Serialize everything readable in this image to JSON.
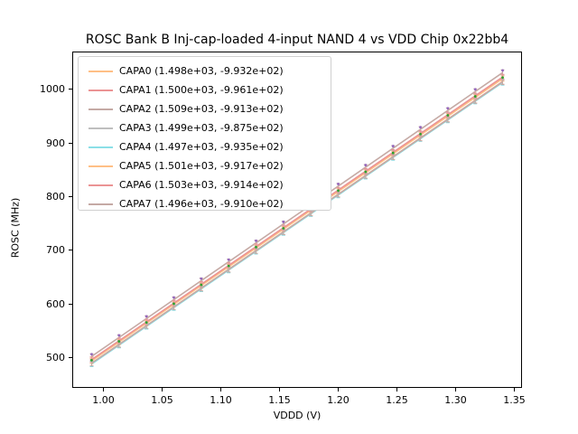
{
  "title": "ROSC Bank B Inj-cap-loaded 4-input NAND 4 vs VDD Chip 0x22bb4",
  "chart_data": {
    "type": "line",
    "title": "ROSC Bank B Inj-cap-loaded 4-input NAND 4 vs VDD Chip 0x22bb4",
    "xlabel": "VDDD (V)",
    "ylabel": "ROSC (MHz)",
    "xlim": [
      0.9735,
      1.3565
    ],
    "ylim": [
      444,
      1070
    ],
    "grid": false,
    "legend_position": "upper left",
    "xticks": {
      "values": [
        1.0,
        1.05,
        1.1,
        1.15,
        1.2,
        1.25,
        1.3,
        1.35
      ],
      "labels": [
        "1.00",
        "1.05",
        "1.10",
        "1.15",
        "1.20",
        "1.25",
        "1.30",
        "1.35"
      ]
    },
    "yticks": {
      "values": [
        500,
        600,
        700,
        800,
        900,
        1000
      ],
      "labels": [
        "500",
        "600",
        "700",
        "800",
        "900",
        "1000"
      ]
    },
    "x_points": [
      0.99,
      1.0133,
      1.0367,
      1.06,
      1.0833,
      1.1067,
      1.13,
      1.1533,
      1.1767,
      1.2,
      1.2233,
      1.2467,
      1.27,
      1.2933,
      1.3167,
      1.34
    ],
    "error_mhz": 5,
    "series": [
      {
        "name": "CAPA0",
        "label": "CAPA0 (1.498e+03, -9.932e+02)",
        "slope": 1498.0,
        "intercept": -993.2,
        "color": "#ffbf86"
      },
      {
        "name": "CAPA1",
        "label": "CAPA1 (1.500e+03, -9.961e+02)",
        "slope": 1500.0,
        "intercept": -996.1,
        "color": "#eb9394"
      },
      {
        "name": "CAPA2",
        "label": "CAPA2 (1.509e+03, -9.913e+02)",
        "slope": 1509.0,
        "intercept": -991.3,
        "color": "#c5aaa5"
      },
      {
        "name": "CAPA3",
        "label": "CAPA3 (1.499e+03, -9.875e+02)",
        "slope": 1499.0,
        "intercept": -987.5,
        "color": "#bfbfbf"
      },
      {
        "name": "CAPA4",
        "label": "CAPA4 (1.497e+03, -9.935e+02)",
        "slope": 1497.0,
        "intercept": -993.5,
        "color": "#8bdfe7"
      },
      {
        "name": "CAPA5",
        "label": "CAPA5 (1.501e+03, -9.917e+02)",
        "slope": 1501.0,
        "intercept": -991.7,
        "color": "#ffbf86"
      },
      {
        "name": "CAPA6",
        "label": "CAPA6 (1.503e+03, -9.914e+02)",
        "slope": 1503.0,
        "intercept": -991.4,
        "color": "#eb9394"
      },
      {
        "name": "CAPA7",
        "label": "CAPA7 (1.496e+03, -9.910e+02)",
        "slope": 1496.0,
        "intercept": -991.0,
        "color": "#c5aaa5"
      }
    ],
    "marker_colors": {
      "top_dot": "#9467bd",
      "mid_dot": "#2ca02c"
    },
    "marker_dot_series": {
      "top_dot_on": "CAPA2",
      "mid_dot_on": "CAPA6"
    }
  }
}
